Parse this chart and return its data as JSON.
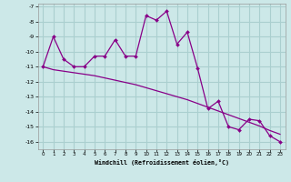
{
  "xlabel": "Windchill (Refroidissement éolien,°C)",
  "background_color": "#cce8e8",
  "grid_color": "#aacfcf",
  "line_color": "#880088",
  "x_values": [
    0,
    1,
    2,
    3,
    4,
    5,
    6,
    7,
    8,
    9,
    10,
    11,
    12,
    13,
    14,
    15,
    16,
    17,
    18,
    19,
    20,
    21,
    22,
    23
  ],
  "y_curve": [
    -11.0,
    -9.0,
    -10.5,
    -11.0,
    -11.0,
    -10.3,
    -10.3,
    -9.2,
    -10.3,
    -10.3,
    -7.6,
    -7.9,
    -7.3,
    -9.5,
    -8.7,
    -11.1,
    -13.8,
    -13.3,
    -15.0,
    -15.2,
    -14.5,
    -14.6,
    -15.6,
    -16.0
  ],
  "y_line": [
    -11.0,
    -11.2,
    -11.3,
    -11.4,
    -11.5,
    -11.6,
    -11.75,
    -11.9,
    -12.05,
    -12.2,
    -12.4,
    -12.6,
    -12.8,
    -13.0,
    -13.2,
    -13.45,
    -13.7,
    -13.95,
    -14.2,
    -14.45,
    -14.7,
    -14.95,
    -15.25,
    -15.5
  ],
  "ylim": [
    -16.5,
    -6.8
  ],
  "xlim": [
    -0.5,
    23.5
  ],
  "yticks": [
    -7,
    -8,
    -9,
    -10,
    -11,
    -12,
    -13,
    -14,
    -15,
    -16
  ],
  "xticks": [
    0,
    1,
    2,
    3,
    4,
    5,
    6,
    7,
    8,
    9,
    10,
    11,
    12,
    13,
    14,
    15,
    16,
    17,
    18,
    19,
    20,
    21,
    22,
    23
  ]
}
